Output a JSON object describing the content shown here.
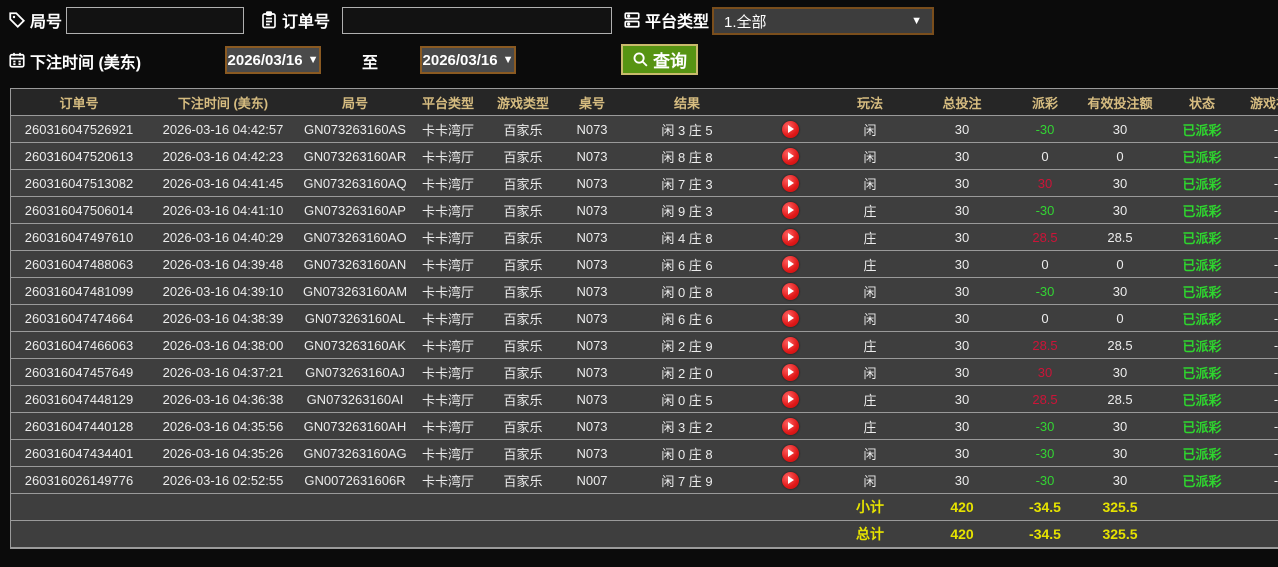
{
  "filters": {
    "game_no": {
      "label": "局号",
      "value": ""
    },
    "order_no": {
      "label": "订单号",
      "value": ""
    },
    "platform": {
      "label": "平台类型",
      "value": "1.全部"
    },
    "bet_time": {
      "label": "下注时间 (美东)",
      "from": "2026/03/16",
      "to": "2026/03/16",
      "to_label": "至"
    },
    "query_label": "查询"
  },
  "icons": {
    "dropdown_arrow": "▼"
  },
  "colors": {
    "header_text": "#d6bc80",
    "positive_payout": "#cc1438",
    "negative_payout": "#33d433",
    "zero_payout": "#ececec",
    "status_paid": "#2ed52e",
    "summary_text": "#e6e300",
    "query_button": "#579413"
  },
  "table": {
    "headers": [
      "订单号",
      "下注时间 (美东)",
      "局号",
      "平台类型",
      "游戏类型",
      "桌号",
      "结果",
      "",
      "玩法",
      "总投注",
      "派彩",
      "有效投注额",
      "状态",
      "游戏视频"
    ],
    "rows": [
      {
        "order": "260316047526921",
        "time": "2026-03-16 04:42:57",
        "game_no": "GN073263160AS",
        "platform": "卡卡湾厅",
        "game_type": "百家乐",
        "table_no": "N073",
        "result": "闲 3 庄 5",
        "play_type": "闲",
        "total_bet": "30",
        "payout": "-30",
        "valid_bet": "30",
        "status": "已派彩",
        "video": "-"
      },
      {
        "order": "260316047520613",
        "time": "2026-03-16 04:42:23",
        "game_no": "GN073263160AR",
        "platform": "卡卡湾厅",
        "game_type": "百家乐",
        "table_no": "N073",
        "result": "闲 8 庄 8",
        "play_type": "闲",
        "total_bet": "30",
        "payout": "0",
        "valid_bet": "0",
        "status": "已派彩",
        "video": "-"
      },
      {
        "order": "260316047513082",
        "time": "2026-03-16 04:41:45",
        "game_no": "GN073263160AQ",
        "platform": "卡卡湾厅",
        "game_type": "百家乐",
        "table_no": "N073",
        "result": "闲 7 庄 3",
        "play_type": "闲",
        "total_bet": "30",
        "payout": "30",
        "valid_bet": "30",
        "status": "已派彩",
        "video": "-"
      },
      {
        "order": "260316047506014",
        "time": "2026-03-16 04:41:10",
        "game_no": "GN073263160AP",
        "platform": "卡卡湾厅",
        "game_type": "百家乐",
        "table_no": "N073",
        "result": "闲 9 庄 3",
        "play_type": "庄",
        "total_bet": "30",
        "payout": "-30",
        "valid_bet": "30",
        "status": "已派彩",
        "video": "-"
      },
      {
        "order": "260316047497610",
        "time": "2026-03-16 04:40:29",
        "game_no": "GN073263160AO",
        "platform": "卡卡湾厅",
        "game_type": "百家乐",
        "table_no": "N073",
        "result": "闲 4 庄 8",
        "play_type": "庄",
        "total_bet": "30",
        "payout": "28.5",
        "valid_bet": "28.5",
        "status": "已派彩",
        "video": "-"
      },
      {
        "order": "260316047488063",
        "time": "2026-03-16 04:39:48",
        "game_no": "GN073263160AN",
        "platform": "卡卡湾厅",
        "game_type": "百家乐",
        "table_no": "N073",
        "result": "闲 6 庄 6",
        "play_type": "庄",
        "total_bet": "30",
        "payout": "0",
        "valid_bet": "0",
        "status": "已派彩",
        "video": "-"
      },
      {
        "order": "260316047481099",
        "time": "2026-03-16 04:39:10",
        "game_no": "GN073263160AM",
        "platform": "卡卡湾厅",
        "game_type": "百家乐",
        "table_no": "N073",
        "result": "闲 0 庄 8",
        "play_type": "闲",
        "total_bet": "30",
        "payout": "-30",
        "valid_bet": "30",
        "status": "已派彩",
        "video": "-"
      },
      {
        "order": "260316047474664",
        "time": "2026-03-16 04:38:39",
        "game_no": "GN073263160AL",
        "platform": "卡卡湾厅",
        "game_type": "百家乐",
        "table_no": "N073",
        "result": "闲 6 庄 6",
        "play_type": "闲",
        "total_bet": "30",
        "payout": "0",
        "valid_bet": "0",
        "status": "已派彩",
        "video": "-"
      },
      {
        "order": "260316047466063",
        "time": "2026-03-16 04:38:00",
        "game_no": "GN073263160AK",
        "platform": "卡卡湾厅",
        "game_type": "百家乐",
        "table_no": "N073",
        "result": "闲 2 庄 9",
        "play_type": "庄",
        "total_bet": "30",
        "payout": "28.5",
        "valid_bet": "28.5",
        "status": "已派彩",
        "video": "-"
      },
      {
        "order": "260316047457649",
        "time": "2026-03-16 04:37:21",
        "game_no": "GN073263160AJ",
        "platform": "卡卡湾厅",
        "game_type": "百家乐",
        "table_no": "N073",
        "result": "闲 2 庄 0",
        "play_type": "闲",
        "total_bet": "30",
        "payout": "30",
        "valid_bet": "30",
        "status": "已派彩",
        "video": "-"
      },
      {
        "order": "260316047448129",
        "time": "2026-03-16 04:36:38",
        "game_no": "GN073263160AI",
        "platform": "卡卡湾厅",
        "game_type": "百家乐",
        "table_no": "N073",
        "result": "闲 0 庄 5",
        "play_type": "庄",
        "total_bet": "30",
        "payout": "28.5",
        "valid_bet": "28.5",
        "status": "已派彩",
        "video": "-"
      },
      {
        "order": "260316047440128",
        "time": "2026-03-16 04:35:56",
        "game_no": "GN073263160AH",
        "platform": "卡卡湾厅",
        "game_type": "百家乐",
        "table_no": "N073",
        "result": "闲 3 庄 2",
        "play_type": "庄",
        "total_bet": "30",
        "payout": "-30",
        "valid_bet": "30",
        "status": "已派彩",
        "video": "-"
      },
      {
        "order": "260316047434401",
        "time": "2026-03-16 04:35:26",
        "game_no": "GN073263160AG",
        "platform": "卡卡湾厅",
        "game_type": "百家乐",
        "table_no": "N073",
        "result": "闲 0 庄 8",
        "play_type": "闲",
        "total_bet": "30",
        "payout": "-30",
        "valid_bet": "30",
        "status": "已派彩",
        "video": "-"
      },
      {
        "order": "260316026149776",
        "time": "2026-03-16 02:52:55",
        "game_no": "GN0072631606R",
        "platform": "卡卡湾厅",
        "game_type": "百家乐",
        "table_no": "N007",
        "result": "闲 7 庄 9",
        "play_type": "闲",
        "total_bet": "30",
        "payout": "-30",
        "valid_bet": "30",
        "status": "已派彩",
        "video": "-"
      }
    ],
    "subtotal": {
      "label": "小计",
      "total_bet": "420",
      "payout": "-34.5",
      "valid_bet": "325.5"
    },
    "total": {
      "label": "总计",
      "total_bet": "420",
      "payout": "-34.5",
      "valid_bet": "325.5"
    }
  }
}
